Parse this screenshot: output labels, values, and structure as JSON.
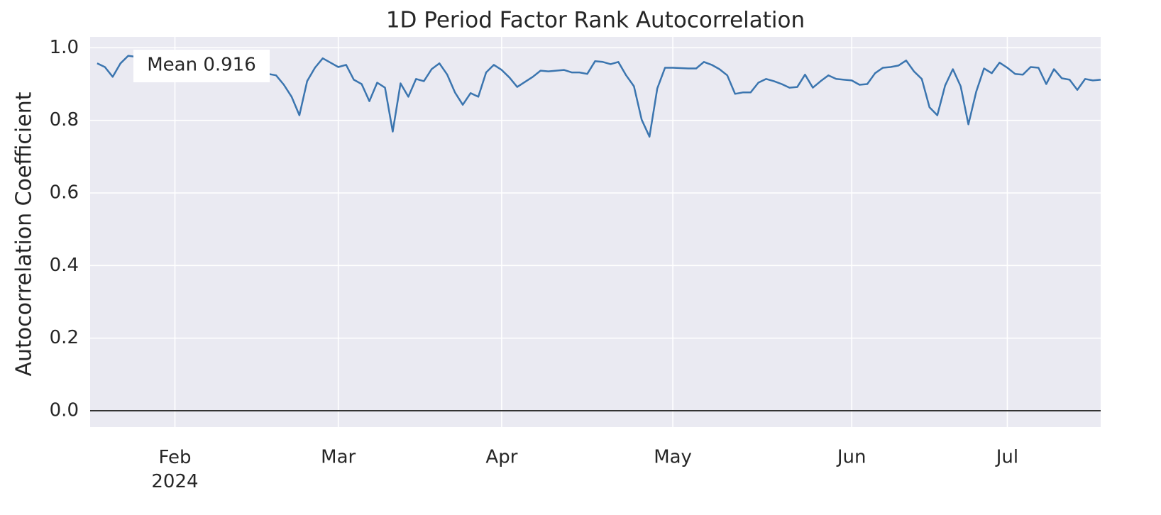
{
  "chart_data": {
    "type": "line",
    "title": "1D Period Factor Rank Autocorrelation",
    "y_label": "Autocorrelation Coefficient",
    "annotation": "Mean 0.916",
    "categories": [
      null,
      null,
      null,
      null,
      null,
      null,
      null,
      null,
      null,
      null,
      "Feb\n2024",
      null,
      null,
      null,
      null,
      null,
      null,
      null,
      null,
      null,
      null,
      null,
      null,
      null,
      null,
      null,
      null,
      null,
      null,
      null,
      null,
      "Mar",
      null,
      null,
      null,
      null,
      null,
      null,
      null,
      null,
      null,
      null,
      null,
      null,
      null,
      null,
      null,
      null,
      null,
      null,
      null,
      null,
      "Apr",
      null,
      null,
      null,
      null,
      null,
      null,
      null,
      null,
      null,
      null,
      null,
      null,
      null,
      null,
      null,
      null,
      null,
      null,
      null,
      null,
      null,
      "May",
      null,
      null,
      null,
      null,
      null,
      null,
      null,
      null,
      null,
      null,
      null,
      null,
      null,
      null,
      null,
      null,
      null,
      null,
      null,
      null,
      null,
      null,
      "Jun",
      null,
      null,
      null,
      null,
      null,
      null,
      null,
      null,
      null,
      null,
      null,
      null,
      null,
      null,
      null,
      null,
      null,
      null,
      null,
      "Jul",
      null,
      null,
      null,
      null,
      null,
      null,
      null,
      null,
      null,
      null,
      null,
      null
    ],
    "series": [
      {
        "name": "1D",
        "color": "#3b75af",
        "values": [
          0.957,
          0.947,
          0.92,
          0.957,
          0.978,
          0.975,
          0.96,
          0.95,
          0.94,
          0.95,
          0.96,
          0.95,
          0.94,
          0.93,
          0.95,
          0.96,
          0.94,
          0.93,
          0.95,
          0.94,
          0.93,
          0.93,
          0.928,
          0.924,
          0.898,
          0.865,
          0.814,
          0.908,
          0.945,
          0.971,
          0.959,
          0.947,
          0.953,
          0.912,
          0.9,
          0.853,
          0.904,
          0.89,
          0.769,
          0.902,
          0.865,
          0.914,
          0.908,
          0.941,
          0.957,
          0.926,
          0.877,
          0.843,
          0.875,
          0.865,
          0.932,
          0.953,
          0.939,
          0.918,
          0.892,
          0.906,
          0.92,
          0.937,
          0.935,
          0.937,
          0.939,
          0.932,
          0.932,
          0.928,
          0.963,
          0.961,
          0.955,
          0.961,
          0.924,
          0.894,
          0.802,
          0.755,
          0.888,
          0.945,
          0.945,
          0.944,
          0.943,
          0.943,
          0.961,
          0.953,
          0.941,
          0.924,
          0.873,
          0.877,
          0.877,
          0.904,
          0.914,
          0.908,
          0.9,
          0.89,
          0.892,
          0.926,
          0.89,
          0.908,
          0.924,
          0.914,
          0.912,
          0.91,
          0.898,
          0.9,
          0.93,
          0.945,
          0.947,
          0.951,
          0.965,
          0.935,
          0.914,
          0.836,
          0.814,
          0.896,
          0.941,
          0.894,
          0.789,
          0.879,
          0.943,
          0.93,
          0.959,
          0.945,
          0.928,
          0.926,
          0.947,
          0.945,
          0.9,
          0.941,
          0.916,
          0.912,
          0.884,
          0.914,
          0.91,
          0.912
        ]
      }
    ],
    "ylim": [
      -0.045,
      1.03
    ],
    "yticks": [
      {
        "value": 0,
        "label": "0.0"
      },
      {
        "value": 0.2,
        "label": "0.2"
      },
      {
        "value": 0.4,
        "label": "0.4"
      },
      {
        "value": 0.6,
        "label": "0.6"
      },
      {
        "value": 0.8,
        "label": "0.8"
      },
      {
        "value": 1,
        "label": "1.0"
      }
    ],
    "grid": true,
    "zero_line": true,
    "background": "#eaeaf2"
  }
}
